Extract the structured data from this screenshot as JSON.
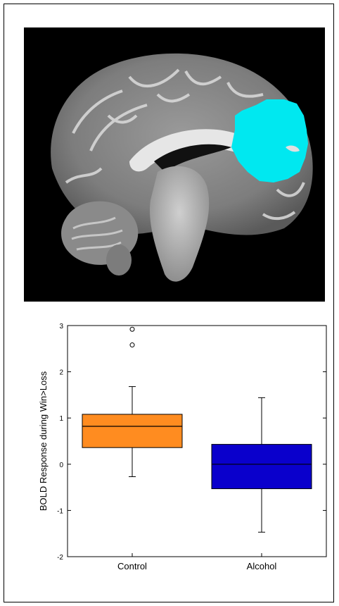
{
  "chart_data": {
    "type": "box",
    "ylabel": "BOLD Response during Win>Loss",
    "ylim": [
      -2,
      3
    ],
    "yticks": [
      -2,
      -1,
      0,
      1,
      2,
      3
    ],
    "categories": [
      "Control",
      "Alcohol"
    ],
    "colors": [
      "#FF8C20",
      "#0A00CC"
    ],
    "boxes": [
      {
        "name": "Control",
        "whisker_low": -0.27,
        "q1": 0.36,
        "median": 0.82,
        "q3": 1.08,
        "whisker_high": 1.68,
        "outliers": [
          2.58,
          2.92
        ]
      },
      {
        "name": "Alcohol",
        "whisker_low": -1.47,
        "q1": -0.53,
        "median": 0.0,
        "q3": 0.43,
        "whisker_high": 1.44,
        "outliers": []
      }
    ]
  },
  "brain_image": {
    "description_icon": "sagittal-mri-slice",
    "roi_color": "#00E8F0"
  }
}
